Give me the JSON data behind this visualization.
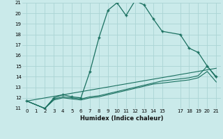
{
  "xlabel": "Humidex (Indice chaleur)",
  "bg_color": "#caeaea",
  "grid_color": "#aad4d4",
  "line_color": "#1a7060",
  "xlim": [
    -0.5,
    21.5
  ],
  "ylim": [
    11,
    21
  ],
  "yticks": [
    11,
    12,
    13,
    14,
    15,
    16,
    17,
    18,
    19,
    20,
    21
  ],
  "xtick_positions": [
    0,
    1,
    2,
    3,
    4,
    5,
    6,
    7,
    8,
    9,
    10,
    11,
    12,
    13,
    14,
    15,
    17,
    18,
    19,
    20,
    21
  ],
  "xtick_labels": [
    "0",
    "1",
    "2",
    "3",
    "4",
    "5",
    "6",
    "7",
    "8",
    "9",
    "10",
    "11",
    "12",
    "13",
    "14",
    "15",
    "17",
    "18",
    "19",
    "20",
    "21"
  ],
  "series_main": {
    "x": [
      0,
      2,
      3,
      4,
      5,
      6,
      7,
      8,
      9,
      10,
      11,
      12,
      13,
      14,
      15,
      17,
      18,
      19,
      20,
      21
    ],
    "y": [
      11.7,
      11.0,
      12.0,
      12.3,
      12.1,
      12.0,
      14.5,
      17.7,
      20.3,
      21.0,
      19.8,
      21.2,
      20.8,
      19.5,
      18.3,
      18.0,
      16.7,
      16.3,
      15.0,
      14.0
    ]
  },
  "series_flat": [
    {
      "x": [
        0,
        2,
        3,
        4,
        5,
        6,
        7,
        8,
        9,
        10,
        11,
        12,
        13,
        14,
        15,
        17,
        18,
        19,
        20,
        21
      ],
      "y": [
        11.7,
        11.0,
        11.9,
        12.1,
        12.0,
        11.9,
        12.1,
        12.2,
        12.4,
        12.6,
        12.8,
        13.0,
        13.2,
        13.4,
        13.6,
        13.8,
        13.9,
        14.1,
        15.0,
        13.9
      ]
    },
    {
      "x": [
        0,
        2,
        3,
        4,
        5,
        6,
        7,
        8,
        9,
        10,
        11,
        12,
        13,
        14,
        15,
        17,
        18,
        19,
        20,
        21
      ],
      "y": [
        11.7,
        11.0,
        11.8,
        12.0,
        11.9,
        11.8,
        12.0,
        12.1,
        12.3,
        12.5,
        12.7,
        12.9,
        13.1,
        13.3,
        13.4,
        13.6,
        13.7,
        13.9,
        14.5,
        13.5
      ]
    },
    {
      "x": [
        0,
        21
      ],
      "y": [
        11.7,
        14.8
      ]
    }
  ]
}
